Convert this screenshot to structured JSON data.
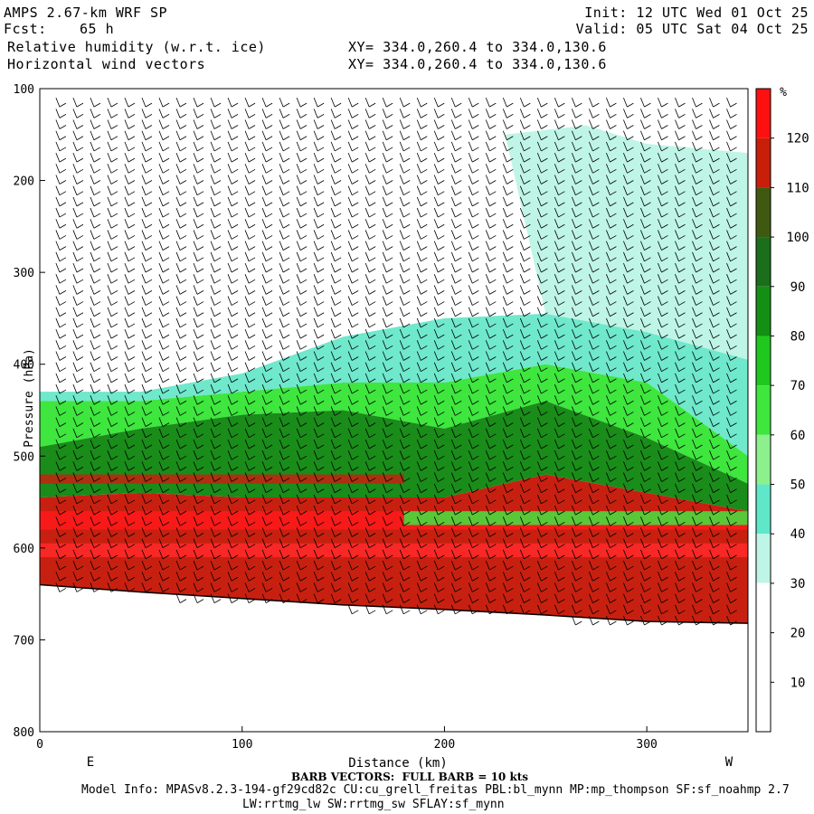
{
  "header": {
    "model_title": "AMPS 2.67-km WRF SP",
    "forecast_label": "Fcst:",
    "forecast_hours": "65 h",
    "init": "Init: 12 UTC Wed 01 Oct 25",
    "valid": "Valid: 05 UTC Sat 04 Oct 25",
    "field1": "Relative humidity (w.r.t. ice)",
    "field2": "Horizontal wind vectors",
    "xsec1": "XY= 334.0,260.4 to 334.0,130.6",
    "xsec2": "XY= 334.0,260.4 to 334.0,130.6"
  },
  "footer": {
    "barb_note": "BARB VECTORS:  FULL BARB = 10 kts",
    "model_info": "Model Info: MPASv8.2.3-194-gf29cd82c CU:cu_grell_freitas PBL:bl_mynn MP:mp_thompson SF:sf_noahmp 2.7",
    "model_info2": "LW:rrtmg_lw SW:rrtmg_sw SFLAY:sf_mynn"
  },
  "chart_data": {
    "type": "heatmap",
    "title": "Relative humidity (w.r.t. ice)",
    "xlabel": "Distance (km)",
    "ylabel": "Pressure (hPa)",
    "xlim": [
      0,
      350
    ],
    "ylim": [
      800,
      100
    ],
    "x_ticks": [
      0,
      100,
      200,
      300
    ],
    "y_ticks": [
      100,
      200,
      300,
      400,
      500,
      600,
      700,
      800
    ],
    "x_end_labels": {
      "left": "E",
      "right": "W"
    },
    "colorbar": {
      "unit": "%",
      "levels": [
        10,
        20,
        30,
        40,
        50,
        60,
        70,
        80,
        90,
        100,
        110,
        120
      ],
      "colors": [
        "#ffffff",
        "#ffffff",
        "#ffffff",
        "#bff5e6",
        "#5ee8c9",
        "#8cf08c",
        "#3ee63e",
        "#1fc81f",
        "#138f13",
        "#1b6e1b",
        "#3f5a10",
        "#c81e0a",
        "#ff1010"
      ]
    },
    "terrain_surface_hpa": {
      "x": [
        0,
        50,
        100,
        150,
        200,
        250,
        300,
        350
      ],
      "p": [
        640,
        648,
        655,
        662,
        667,
        673,
        680,
        682
      ]
    },
    "rh_layers": [
      {
        "level": "<30",
        "top": [
          100,
          100,
          100,
          100,
          100,
          100,
          100,
          100
        ],
        "bottom": [
          430,
          430,
          410,
          370,
          350,
          345,
          365,
          395
        ]
      },
      {
        "level": "30-50",
        "top": [
          430,
          430,
          410,
          370,
          350,
          345,
          365,
          395
        ],
        "bottom": [
          440,
          440,
          430,
          420,
          420,
          400,
          420,
          500
        ]
      },
      {
        "level": "60-80",
        "top": [
          440,
          440,
          430,
          420,
          420,
          400,
          420,
          500
        ],
        "bottom": [
          490,
          470,
          455,
          450,
          470,
          440,
          480,
          530
        ]
      },
      {
        "level": "90-110",
        "top": [
          490,
          470,
          455,
          450,
          470,
          440,
          480,
          530
        ],
        "bottom": [
          545,
          540,
          545,
          545,
          545,
          520,
          540,
          560
        ]
      },
      {
        "level": ">110",
        "top": [
          545,
          540,
          545,
          545,
          545,
          520,
          540,
          560
        ],
        "bottom": [
          640,
          648,
          655,
          662,
          667,
          673,
          680,
          682
        ]
      }
    ],
    "moist_tongue_top_hpa": {
      "x": [
        230,
        270,
        300,
        350
      ],
      "p": [
        150,
        140,
        160,
        170
      ]
    },
    "wind_barbs": {
      "units": "kts",
      "full_barb_kts": 10
    }
  }
}
